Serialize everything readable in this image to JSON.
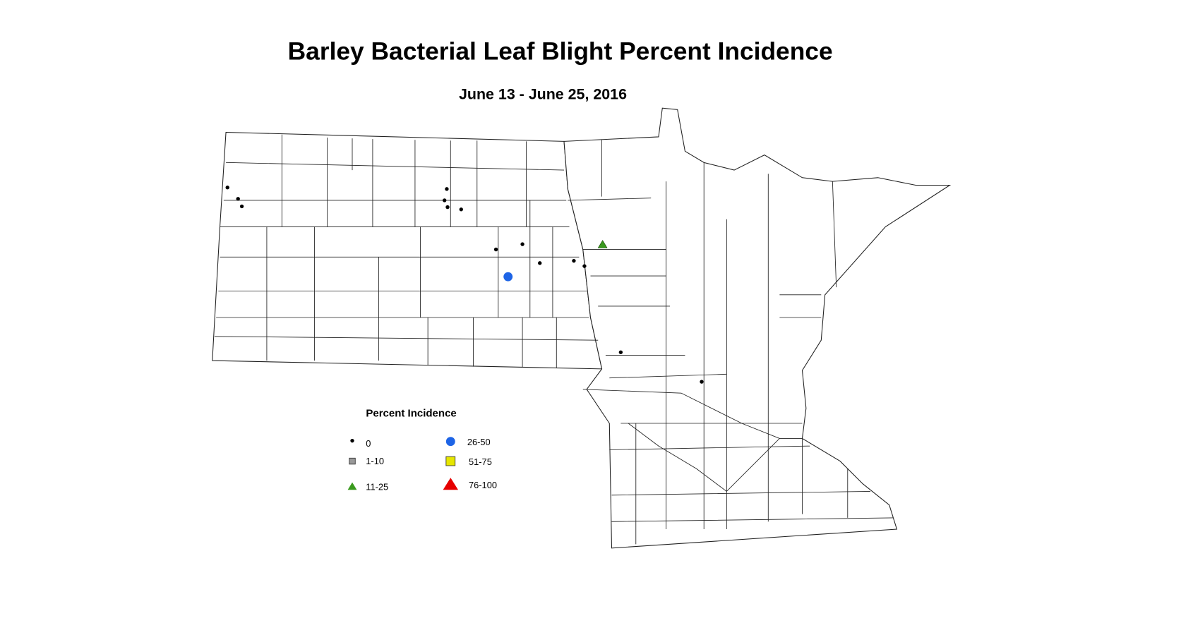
{
  "header": {
    "title": "Barley Bacterial Leaf Blight Percent Incidence",
    "subtitle": "June 13 - June 25, 2016"
  },
  "legend": {
    "title": "Percent Incidence",
    "items": [
      "0",
      "1-10",
      "11-25",
      "26-50",
      "51-75",
      "76-100"
    ]
  }
}
